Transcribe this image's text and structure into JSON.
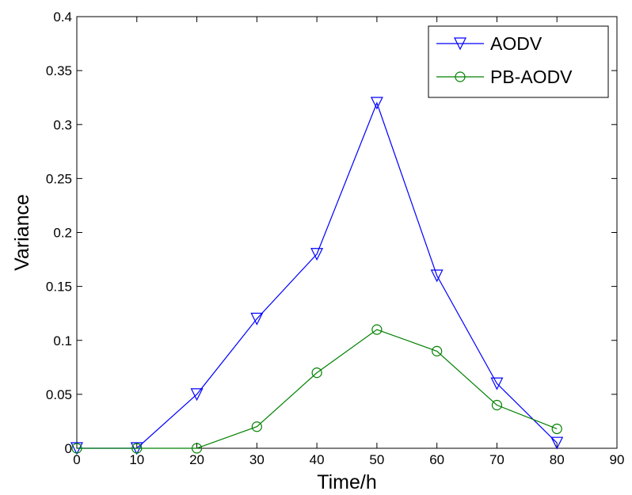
{
  "chart_data": {
    "type": "line",
    "title": "",
    "xlabel": "Time/h",
    "ylabel": "Variance",
    "xlim": [
      0,
      90
    ],
    "ylim": [
      0,
      0.4
    ],
    "xticks": [
      0,
      10,
      20,
      30,
      40,
      50,
      60,
      70,
      80,
      90
    ],
    "yticks": [
      0,
      0.05,
      0.1,
      0.15,
      0.2,
      0.25,
      0.3,
      0.35,
      0.4
    ],
    "ytick_labels": [
      "0",
      "0.05",
      "0.1",
      "0.15",
      "0.2",
      "0.25",
      "0.3",
      "0.35",
      "0.4"
    ],
    "x": [
      0,
      10,
      20,
      30,
      40,
      50,
      60,
      70,
      80
    ],
    "grid": false,
    "legend_position": "top-right",
    "series": [
      {
        "name": "AODV",
        "color": "#0000ff",
        "marker": "triangle-down",
        "values": [
          0,
          0,
          0.05,
          0.12,
          0.18,
          0.32,
          0.16,
          0.06,
          0.005
        ]
      },
      {
        "name": "PB-AODV",
        "color": "#008000",
        "marker": "circle",
        "values": [
          0,
          0,
          0,
          0.02,
          0.07,
          0.11,
          0.09,
          0.04,
          0.018
        ]
      }
    ]
  }
}
